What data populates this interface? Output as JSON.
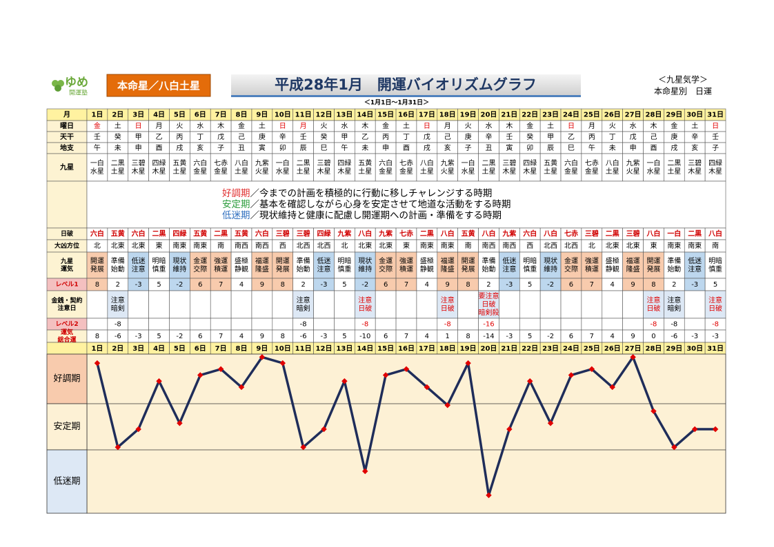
{
  "header": {
    "logo": "ゆめ",
    "logo_sub": "開運塾",
    "honmei": "本命星／八白土星",
    "title": "平成28年1月　開運バイオリズムグラフ",
    "period": "＜1月1日～1月31日＞",
    "school": "＜九星気学＞",
    "kind": "本命星別　日運"
  },
  "table": {
    "head_label": "月",
    "days": [
      "1日",
      "2日",
      "3日",
      "4日",
      "5日",
      "6日",
      "7日",
      "8日",
      "9日",
      "10日",
      "11日",
      "12日",
      "13日",
      "14日",
      "15日",
      "16日",
      "17日",
      "18日",
      "19日",
      "20日",
      "21日",
      "22日",
      "23日",
      "24日",
      "25日",
      "26日",
      "27日",
      "28日",
      "29日",
      "30日",
      "31日"
    ],
    "rows_top": [
      {
        "label": [
          "曜日"
        ],
        "cells": [
          "金",
          "土",
          "日",
          "月",
          "火",
          "水",
          "木",
          "金",
          "土",
          "日",
          "月",
          "火",
          "水",
          "木",
          "金",
          "土",
          "日",
          "月",
          "火",
          "水",
          "木",
          "金",
          "土",
          "日",
          "月",
          "火",
          "水",
          "木",
          "金",
          "土",
          "日"
        ],
        "colors": [
          "#e00000",
          null,
          "#e00000",
          null,
          null,
          null,
          null,
          null,
          null,
          "#e00000",
          "#e00000",
          null,
          null,
          null,
          null,
          null,
          "#e00000",
          null,
          null,
          null,
          null,
          null,
          null,
          "#e00000",
          null,
          null,
          null,
          null,
          null,
          null,
          "#e00000"
        ]
      },
      {
        "label": [
          "天干"
        ],
        "cells": [
          "壬",
          "癸",
          "甲",
          "乙",
          "丙",
          "丁",
          "戊",
          "己",
          "庚",
          "辛",
          "壬",
          "癸",
          "甲",
          "乙",
          "丙",
          "丁",
          "戊",
          "己",
          "庚",
          "辛",
          "壬",
          "癸",
          "甲",
          "乙",
          "丙",
          "丁",
          "戊",
          "己",
          "庚",
          "辛",
          "壬"
        ]
      },
      {
        "label": [
          "地支"
        ],
        "cells": [
          "午",
          "未",
          "申",
          "酉",
          "戌",
          "亥",
          "子",
          "丑",
          "寅",
          "卯",
          "辰",
          "巳",
          "午",
          "未",
          "申",
          "酉",
          "戌",
          "亥",
          "子",
          "丑",
          "寅",
          "卯",
          "辰",
          "巳",
          "午",
          "未",
          "申",
          "酉",
          "戌",
          "亥",
          "子"
        ]
      },
      {
        "label": [
          "九星"
        ],
        "cells": [
          [
            "一白",
            "水星"
          ],
          [
            "二黒",
            "土星"
          ],
          [
            "三碧",
            "木星"
          ],
          [
            "四緑",
            "木星"
          ],
          [
            "五黄",
            "土星"
          ],
          [
            "六白",
            "金星"
          ],
          [
            "七赤",
            "金星"
          ],
          [
            "八白",
            "土星"
          ],
          [
            "九紫",
            "火星"
          ],
          [
            "一白",
            "水星"
          ],
          [
            "二黒",
            "土星"
          ],
          [
            "三碧",
            "木星"
          ],
          [
            "四緑",
            "木星"
          ],
          [
            "五黄",
            "土星"
          ],
          [
            "六白",
            "金星"
          ],
          [
            "七赤",
            "金星"
          ],
          [
            "八白",
            "土星"
          ],
          [
            "九紫",
            "火星"
          ],
          [
            "一白",
            "水星"
          ],
          [
            "二黒",
            "土星"
          ],
          [
            "三碧",
            "木星"
          ],
          [
            "四緑",
            "木星"
          ],
          [
            "五黄",
            "土星"
          ],
          [
            "六白",
            "金星"
          ],
          [
            "七赤",
            "金星"
          ],
          [
            "八白",
            "土星"
          ],
          [
            "九紫",
            "火星"
          ],
          [
            "一白",
            "水星"
          ],
          [
            "二黒",
            "土星"
          ],
          [
            "三碧",
            "木星"
          ],
          [
            "四緑",
            "木星"
          ]
        ]
      }
    ],
    "phases": [
      {
        "name": "好調期",
        "color": "#e03030",
        "text": "／今までの計画を積極的に行動に移しチャレンジする時期"
      },
      {
        "name": "安定期",
        "color": "#2e9e3e",
        "text": "／基本を確認しながら心身を安定させて地道な活動をする時期"
      },
      {
        "name": "低迷期",
        "color": "#2f6fbf",
        "text": "／現状維持と健康に配慮し開運期への計画・準備をする時期"
      }
    ],
    "rows_bottom": [
      {
        "label": [
          "日破"
        ],
        "color": "#d00000",
        "cells": [
          "六白",
          "五黄",
          "六白",
          "二黒",
          "四緑",
          "五黄",
          "二黒",
          "五黄",
          "六白",
          "三碧",
          "三碧",
          "四緑",
          "九紫",
          "八白",
          "九紫",
          "七赤",
          "二黒",
          "八白",
          "五黄",
          "八白",
          "九紫",
          "六白",
          "八白",
          "七赤",
          "三碧",
          "二黒",
          "三碧",
          "八白",
          "一白",
          "二黒",
          "八白"
        ]
      },
      {
        "label": [
          "大凶方位"
        ],
        "cells": [
          "北",
          "北東",
          "北東",
          "東",
          "南東",
          "南東",
          "南",
          "南西",
          "南西",
          "西",
          "北西",
          "北西",
          "北",
          "北東",
          "北東",
          "東",
          "南東",
          "南東",
          "南",
          "南西",
          "南西",
          "西",
          "北西",
          "北西",
          "北",
          "北東",
          "北東",
          "東",
          "南東",
          "南東",
          "南"
        ]
      },
      {
        "label": [
          "九星",
          "運気"
        ],
        "cells": [
          [
            "開運",
            "発展"
          ],
          [
            "準備",
            "始動"
          ],
          [
            "低迷",
            "注意"
          ],
          [
            "明暗",
            "慎重"
          ],
          [
            "現状",
            "維持"
          ],
          [
            "金運",
            "交際"
          ],
          [
            "強運",
            "積運"
          ],
          [
            "盛極",
            "静観"
          ],
          [
            "福運",
            "隆盛"
          ],
          [
            "開運",
            "発展"
          ],
          [
            "準備",
            "始動"
          ],
          [
            "低迷",
            "注意"
          ],
          [
            "明暗",
            "慎重"
          ],
          [
            "現状",
            "維持"
          ],
          [
            "金運",
            "交際"
          ],
          [
            "強運",
            "積運"
          ],
          [
            "盛極",
            "静観"
          ],
          [
            "福運",
            "隆盛"
          ],
          [
            "開運",
            "発展"
          ],
          [
            "準備",
            "始動"
          ],
          [
            "低迷",
            "注意"
          ],
          [
            "明暗",
            "慎重"
          ],
          [
            "現状",
            "維持"
          ],
          [
            "金運",
            "交際"
          ],
          [
            "強運",
            "積運"
          ],
          [
            "盛極",
            "静観"
          ],
          [
            "福運",
            "隆盛"
          ],
          [
            "開運",
            "発展"
          ],
          [
            "準備",
            "始動"
          ],
          [
            "低迷",
            "注意"
          ],
          [
            "明暗",
            "慎重"
          ]
        ],
        "fills": [
          "#f8cbad",
          null,
          "#bdd7ee",
          null,
          "#bdd7ee",
          "#f8cbad",
          "#f8cbad",
          null,
          "#f8cbad",
          "#f8cbad",
          null,
          "#bdd7ee",
          null,
          "#bdd7ee",
          "#f8cbad",
          "#f8cbad",
          null,
          "#f8cbad",
          "#f8cbad",
          null,
          "#bdd7ee",
          null,
          "#bdd7ee",
          "#f8cbad",
          "#f8cbad",
          null,
          "#f8cbad",
          "#f8cbad",
          null,
          "#bdd7ee",
          null
        ]
      },
      {
        "label": [
          "レベル1"
        ],
        "label_color": "#d00000",
        "label_fill": "#f4c0c0",
        "cells": [
          8,
          2,
          -3,
          5,
          -2,
          6,
          7,
          4,
          9,
          8,
          2,
          -3,
          5,
          -2,
          6,
          7,
          4,
          9,
          8,
          2,
          -3,
          5,
          -2,
          6,
          7,
          4,
          9,
          8,
          2,
          -3,
          5
        ],
        "fills": [
          "#f8cbad",
          null,
          "#bdd7ee",
          null,
          "#bdd7ee",
          "#f8cbad",
          "#f8cbad",
          null,
          "#f8cbad",
          "#f8cbad",
          null,
          "#bdd7ee",
          null,
          "#bdd7ee",
          "#f8cbad",
          "#f8cbad",
          null,
          "#f8cbad",
          "#f8cbad",
          null,
          "#bdd7ee",
          null,
          "#bdd7ee",
          "#f8cbad",
          "#f8cbad",
          null,
          "#f8cbad",
          "#f8cbad",
          null,
          "#bdd7ee",
          null
        ]
      },
      {
        "label": [
          "金銭・契約",
          "注意日"
        ],
        "cells": [
          null,
          [
            "注意",
            "暗剣"
          ],
          null,
          null,
          null,
          null,
          null,
          null,
          null,
          null,
          [
            "注意",
            "暗剣"
          ],
          null,
          null,
          [
            "注意",
            "日破"
          ],
          null,
          null,
          null,
          [
            "注意",
            "日破"
          ],
          null,
          [
            "要注意",
            "日破",
            "暗剣殺"
          ],
          null,
          null,
          null,
          null,
          null,
          null,
          null,
          [
            "注意",
            "日破"
          ],
          [
            "注意",
            "暗剣"
          ],
          null,
          [
            "注意",
            "日破"
          ]
        ],
        "colors": [
          null,
          null,
          null,
          null,
          null,
          null,
          null,
          null,
          null,
          null,
          null,
          null,
          null,
          "#e00000",
          null,
          null,
          null,
          "#e00000",
          null,
          "#e00000",
          null,
          null,
          null,
          null,
          null,
          null,
          null,
          "#e00000",
          null,
          null,
          "#e00000"
        ],
        "fills": [
          null,
          "#dde8f5",
          null,
          null,
          null,
          null,
          null,
          null,
          null,
          null,
          "#dde8f5",
          null,
          null,
          "#dde8f5",
          null,
          null,
          null,
          "#dde8f5",
          null,
          "#dde8f5",
          null,
          null,
          null,
          null,
          null,
          null,
          null,
          "#dde8f5",
          "#dde8f5",
          null,
          "#dde8f5"
        ]
      },
      {
        "label": [
          "レベル2"
        ],
        "label_color": "#d00000",
        "label_fill": "#f4c0c0",
        "cells": [
          null,
          -8,
          null,
          null,
          null,
          null,
          null,
          null,
          null,
          null,
          -8,
          null,
          null,
          -8,
          null,
          null,
          null,
          -8,
          null,
          -16,
          null,
          null,
          null,
          null,
          null,
          null,
          null,
          -8,
          -8,
          null,
          -8
        ],
        "colors": [
          null,
          null,
          null,
          null,
          null,
          null,
          null,
          null,
          null,
          null,
          null,
          null,
          null,
          "#e00000",
          null,
          null,
          null,
          "#e00000",
          null,
          "#e00000",
          null,
          null,
          null,
          null,
          null,
          null,
          null,
          "#e00000",
          null,
          null,
          "#e00000"
        ]
      },
      {
        "label": [
          "運気",
          "総合運"
        ],
        "label_color": "#d00000",
        "cells": [
          8,
          -6,
          -3,
          5,
          -2,
          6,
          7,
          4,
          9,
          8,
          -6,
          -3,
          5,
          -10,
          6,
          7,
          4,
          1,
          8,
          -14,
          -3,
          5,
          -2,
          6,
          7,
          4,
          9,
          0,
          -6,
          -3,
          -3
        ]
      }
    ]
  },
  "chart_data": {
    "type": "line",
    "color": "#1f2d5a",
    "marker_color": "#e00000",
    "bands": [
      "好調期",
      "安定期",
      "低迷期"
    ],
    "categories": [
      "1日",
      "2日",
      "3日",
      "4日",
      "5日",
      "6日",
      "7日",
      "8日",
      "9日",
      "10日",
      "11日",
      "12日",
      "13日",
      "14日",
      "15日",
      "16日",
      "17日",
      "18日",
      "19日",
      "20日",
      "21日",
      "22日",
      "23日",
      "24日",
      "25日",
      "26日",
      "27日",
      "28日",
      "29日",
      "30日",
      "31日"
    ],
    "values": [
      8,
      -6,
      -3,
      5,
      -2,
      6,
      7,
      4,
      9,
      8,
      -6,
      -3,
      5,
      -10,
      6,
      7,
      4,
      1,
      8,
      -14,
      -3,
      5,
      -2,
      6,
      7,
      4,
      9,
      0,
      -6,
      -3,
      -3
    ],
    "ylim": [
      -17,
      9.5
    ]
  }
}
